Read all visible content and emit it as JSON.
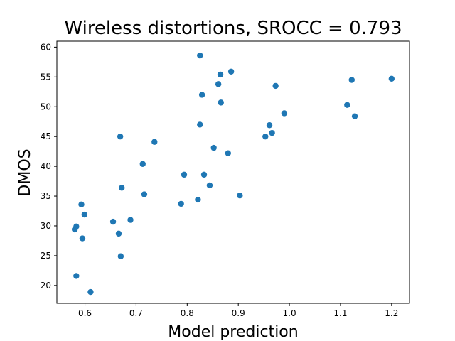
{
  "chart_data": {
    "type": "scatter",
    "title": "Wireless distortions, SROCC = 0.793",
    "xlabel": "Model prediction",
    "ylabel": "DMOS",
    "xlim": [
      0.545,
      1.235
    ],
    "ylim": [
      17,
      61
    ],
    "xticks": [
      0.6,
      0.7,
      0.8,
      0.9,
      1.0,
      1.1,
      1.2
    ],
    "xtick_labels": [
      "0.6",
      "0.7",
      "0.8",
      "0.9",
      "1.0",
      "1.1",
      "1.2"
    ],
    "yticks": [
      20,
      25,
      30,
      35,
      40,
      45,
      50,
      55,
      60
    ],
    "ytick_labels": [
      "20",
      "25",
      "30",
      "35",
      "40",
      "45",
      "50",
      "55",
      "60"
    ],
    "grid": false,
    "marker_color": "#1f77b4",
    "points": [
      {
        "x": 0.58,
        "y": 29.4
      },
      {
        "x": 0.583,
        "y": 29.9
      },
      {
        "x": 0.583,
        "y": 21.6
      },
      {
        "x": 0.593,
        "y": 33.6
      },
      {
        "x": 0.595,
        "y": 27.9
      },
      {
        "x": 0.599,
        "y": 31.9
      },
      {
        "x": 0.611,
        "y": 18.9
      },
      {
        "x": 0.655,
        "y": 30.7
      },
      {
        "x": 0.666,
        "y": 28.7
      },
      {
        "x": 0.669,
        "y": 45.0
      },
      {
        "x": 0.67,
        "y": 24.9
      },
      {
        "x": 0.672,
        "y": 36.4
      },
      {
        "x": 0.689,
        "y": 31.0
      },
      {
        "x": 0.713,
        "y": 40.4
      },
      {
        "x": 0.716,
        "y": 35.3
      },
      {
        "x": 0.736,
        "y": 44.1
      },
      {
        "x": 0.788,
        "y": 33.7
      },
      {
        "x": 0.794,
        "y": 38.6
      },
      {
        "x": 0.821,
        "y": 34.4
      },
      {
        "x": 0.825,
        "y": 47.0
      },
      {
        "x": 0.825,
        "y": 58.6
      },
      {
        "x": 0.829,
        "y": 52.0
      },
      {
        "x": 0.833,
        "y": 38.6
      },
      {
        "x": 0.844,
        "y": 36.8
      },
      {
        "x": 0.852,
        "y": 43.1
      },
      {
        "x": 0.861,
        "y": 53.8
      },
      {
        "x": 0.865,
        "y": 55.4
      },
      {
        "x": 0.866,
        "y": 50.7
      },
      {
        "x": 0.88,
        "y": 42.2
      },
      {
        "x": 0.886,
        "y": 55.9
      },
      {
        "x": 0.903,
        "y": 35.1
      },
      {
        "x": 0.953,
        "y": 45.0
      },
      {
        "x": 0.961,
        "y": 46.9
      },
      {
        "x": 0.966,
        "y": 45.6
      },
      {
        "x": 0.973,
        "y": 53.5
      },
      {
        "x": 0.99,
        "y": 48.9
      },
      {
        "x": 1.113,
        "y": 50.3
      },
      {
        "x": 1.122,
        "y": 54.5
      },
      {
        "x": 1.128,
        "y": 48.4
      },
      {
        "x": 1.2,
        "y": 54.7
      }
    ]
  }
}
